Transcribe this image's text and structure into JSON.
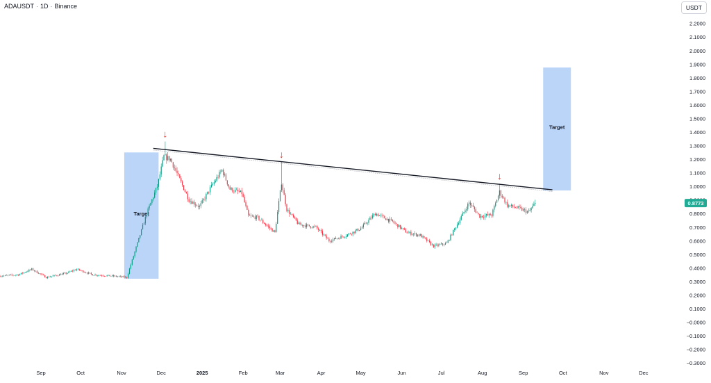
{
  "header": {
    "symbol": "ADAUSDT",
    "interval": "1D",
    "exchange": "Binance",
    "separator": "·",
    "currency_button": "USDT"
  },
  "price_label": {
    "value": "0.8773",
    "color": "#22ab94"
  },
  "colors": {
    "up": "#089981",
    "down": "#f23645",
    "trendline": "#131722",
    "target_box": "#bbd5f9",
    "arrow": "#e53935",
    "axis_text": "#131722"
  },
  "annotations": {
    "left_target_label": "Target",
    "right_target_label": "Target",
    "arrow_glyph": "↓"
  },
  "chart_data": {
    "type": "candlestick",
    "title": "ADAUSDT · 1D · Binance",
    "xlabel": "",
    "ylabel": "",
    "ylim": [
      -0.33,
      2.27
    ],
    "grid": false,
    "x_tick_labels": [
      "Sep",
      "Oct",
      "Nov",
      "Dec",
      "2025",
      "Feb",
      "Mar",
      "Apr",
      "May",
      "Jun",
      "Jul",
      "Aug",
      "Sep",
      "Oct",
      "Nov",
      "Dec"
    ],
    "x_tick_dates": [
      "2024-09-01",
      "2024-10-01",
      "2024-11-01",
      "2024-12-01",
      "2025-01-01",
      "2025-02-01",
      "2025-03-01",
      "2025-04-01",
      "2025-05-01",
      "2025-06-01",
      "2025-07-01",
      "2025-08-01",
      "2025-09-01",
      "2025-10-01",
      "2025-11-01",
      "2025-12-01"
    ],
    "y_tick_labels": [
      "2.2000",
      "2.1000",
      "2.0000",
      "1.9000",
      "1.8000",
      "1.7000",
      "1.6000",
      "1.5000",
      "1.4000",
      "1.3000",
      "1.2000",
      "1.1000",
      "1.0000",
      "0.9000",
      "0.8000",
      "0.7000",
      "0.6000",
      "0.5000",
      "0.4000",
      "0.3000",
      "0.2000",
      "0.1000",
      "−0.0000",
      "−0.1000",
      "−0.2000",
      "−0.3000"
    ],
    "last_price": 0.8773,
    "price_path": [
      [
        "2024-08-01",
        0.34
      ],
      [
        "2024-08-15",
        0.35
      ],
      [
        "2024-08-25",
        0.39
      ],
      [
        "2024-09-05",
        0.33
      ],
      [
        "2024-09-20",
        0.36
      ],
      [
        "2024-09-28",
        0.39
      ],
      [
        "2024-10-10",
        0.35
      ],
      [
        "2024-10-25",
        0.34
      ],
      [
        "2024-11-05",
        0.33
      ],
      [
        "2024-11-12",
        0.55
      ],
      [
        "2024-11-20",
        0.8
      ],
      [
        "2024-11-28",
        1.0
      ],
      [
        "2024-12-03",
        1.22
      ],
      [
        "2024-12-08",
        1.2
      ],
      [
        "2024-12-15",
        1.05
      ],
      [
        "2024-12-22",
        0.9
      ],
      [
        "2024-12-30",
        0.85
      ],
      [
        "2025-01-08",
        1.0
      ],
      [
        "2025-01-16",
        1.12
      ],
      [
        "2025-01-22",
        0.98
      ],
      [
        "2025-01-31",
        0.95
      ],
      [
        "2025-02-05",
        0.78
      ],
      [
        "2025-02-12",
        0.77
      ],
      [
        "2025-02-25",
        0.66
      ],
      [
        "2025-03-02",
        1.03
      ],
      [
        "2025-03-06",
        0.83
      ],
      [
        "2025-03-15",
        0.72
      ],
      [
        "2025-03-28",
        0.7
      ],
      [
        "2025-04-07",
        0.6
      ],
      [
        "2025-04-20",
        0.64
      ],
      [
        "2025-05-01",
        0.69
      ],
      [
        "2025-05-12",
        0.8
      ],
      [
        "2025-05-25",
        0.74
      ],
      [
        "2025-06-05",
        0.66
      ],
      [
        "2025-06-15",
        0.64
      ],
      [
        "2025-06-25",
        0.56
      ],
      [
        "2025-07-05",
        0.58
      ],
      [
        "2025-07-14",
        0.74
      ],
      [
        "2025-07-22",
        0.88
      ],
      [
        "2025-07-30",
        0.78
      ],
      [
        "2025-08-08",
        0.79
      ],
      [
        "2025-08-14",
        0.96
      ],
      [
        "2025-08-20",
        0.86
      ],
      [
        "2025-08-28",
        0.84
      ],
      [
        "2025-09-05",
        0.81
      ],
      [
        "2025-09-10",
        0.8773
      ]
    ],
    "trendline": {
      "x": [
        "2024-11-25",
        "2025-09-23"
      ],
      "y": [
        1.28,
        0.975
      ]
    },
    "target_zones": [
      {
        "label": "Target",
        "x": [
          "2024-11-03",
          "2024-11-29"
        ],
        "y": [
          0.32,
          1.25
        ]
      },
      {
        "label": "Target",
        "x": [
          "2025-09-16",
          "2025-10-07"
        ],
        "y": [
          0.97,
          1.875
        ]
      }
    ],
    "resistance_touches": [
      {
        "date": "2024-12-04",
        "price": 1.33
      },
      {
        "date": "2025-03-02",
        "price": 1.18
      },
      {
        "date": "2025-08-14",
        "price": 1.02
      }
    ]
  }
}
